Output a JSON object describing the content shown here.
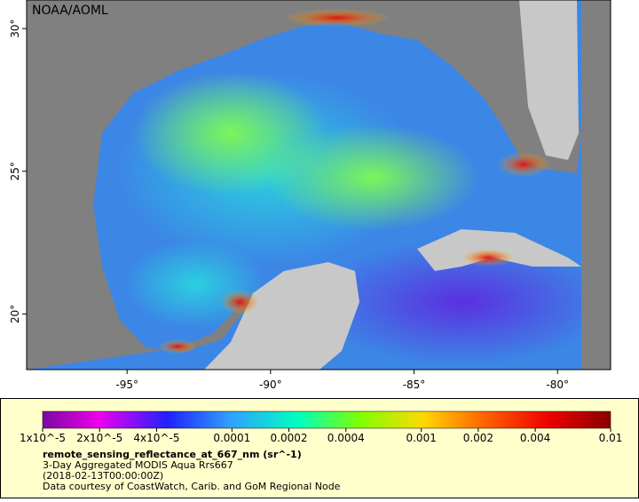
{
  "chart_data": {
    "type": "map",
    "title": "NOAA/AOML",
    "xlim": [
      -98.5,
      -78.15
    ],
    "ylim": [
      18.05,
      31
    ],
    "xticks": [
      {
        "value": -95,
        "label": "-95°"
      },
      {
        "value": -90,
        "label": "-90°"
      },
      {
        "value": -85,
        "label": "-85°"
      },
      {
        "value": -80,
        "label": "-80°"
      }
    ],
    "yticks": [
      {
        "value": 20,
        "label": "20°"
      },
      {
        "value": 25,
        "label": "25°"
      },
      {
        "value": 30,
        "label": "30°"
      }
    ],
    "colorbar": {
      "scale": "log",
      "lim": [
        1e-05,
        0.01
      ],
      "ticks": [
        {
          "value": 1e-05,
          "label": "1x10^-5"
        },
        {
          "value": 2e-05,
          "label": "2x10^-5"
        },
        {
          "value": 4e-05,
          "label": "4x10^-5"
        },
        0.0001,
        0.0002,
        0.0004,
        0.001,
        0.002,
        0.004,
        0.01
      ]
    },
    "legend_lines": [
      "remote_sensing_reflectance_at_667_nm (sr^-1)",
      "3-Day Aggregated MODIS Aqua Rrs667",
      "(2018-02-13T00:00:00Z)",
      "Data courtesy of CoastWatch, Carib. and GoM Regional Node"
    ]
  }
}
